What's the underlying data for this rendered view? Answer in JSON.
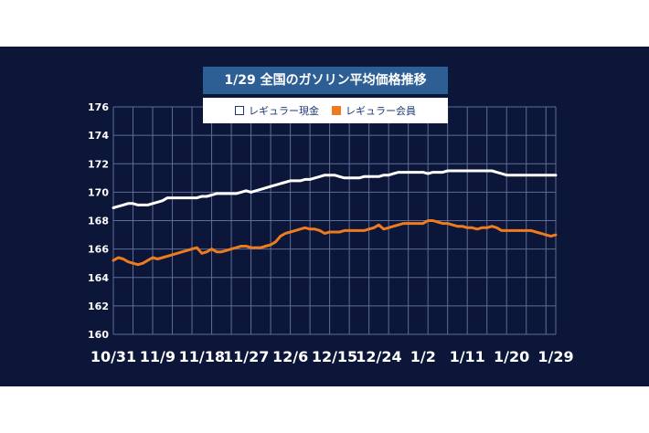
{
  "chart_data": {
    "type": "line",
    "title": "1/29 全国のガソリン平均価格推移",
    "xlabel": "",
    "ylabel": "",
    "ylim": [
      160,
      176
    ],
    "yticks": [
      160,
      162,
      164,
      166,
      168,
      170,
      172,
      174,
      176
    ],
    "grid": true,
    "legend_position": "top-center",
    "tick_labels_x": [
      "10/31",
      "11/9",
      "11/18",
      "11/27",
      "12/6",
      "12/15",
      "12/24",
      "1/2",
      "1/11",
      "1/20",
      "1/29"
    ],
    "x": [
      0,
      1,
      2,
      3,
      4,
      5,
      6,
      7,
      8,
      9,
      10,
      11,
      12,
      13,
      14,
      15,
      16,
      17,
      18,
      19,
      20,
      21,
      22,
      23,
      24,
      25,
      26,
      27,
      28,
      29,
      30,
      31,
      32,
      33,
      34,
      35,
      36,
      37,
      38,
      39,
      40,
      41,
      42,
      43,
      44,
      45,
      46,
      47,
      48,
      49,
      50,
      51,
      52,
      53,
      54,
      55,
      56,
      57,
      58,
      59,
      60,
      61,
      62,
      63,
      64,
      65,
      66,
      67,
      68,
      69,
      70,
      71,
      72,
      73,
      74,
      75,
      76,
      77,
      78,
      79,
      80,
      81,
      82,
      83,
      84,
      85,
      86,
      87,
      88,
      89,
      90
    ],
    "series": [
      {
        "name": "レギュラー現金",
        "color": "#ffffff",
        "values": [
          168.9,
          169.0,
          169.1,
          169.2,
          169.2,
          169.1,
          169.1,
          169.1,
          169.2,
          169.3,
          169.4,
          169.6,
          169.6,
          169.6,
          169.6,
          169.6,
          169.6,
          169.6,
          169.7,
          169.7,
          169.8,
          169.9,
          169.9,
          169.9,
          169.9,
          169.9,
          170.0,
          170.1,
          170.0,
          170.1,
          170.2,
          170.3,
          170.4,
          170.5,
          170.6,
          170.7,
          170.8,
          170.8,
          170.8,
          170.9,
          170.9,
          171.0,
          171.1,
          171.2,
          171.2,
          171.2,
          171.1,
          171.0,
          171.0,
          171.0,
          171.0,
          171.1,
          171.1,
          171.1,
          171.1,
          171.2,
          171.2,
          171.3,
          171.4,
          171.4,
          171.4,
          171.4,
          171.4,
          171.4,
          171.3,
          171.4,
          171.4,
          171.4,
          171.5,
          171.5,
          171.5,
          171.5,
          171.5,
          171.5,
          171.5,
          171.5,
          171.5,
          171.5,
          171.4,
          171.3,
          171.2,
          171.2,
          171.2,
          171.2,
          171.2,
          171.2,
          171.2,
          171.2,
          171.2,
          171.2,
          171.2
        ]
      },
      {
        "name": "レギュラー会員",
        "color": "#ee7b1e",
        "values": [
          165.2,
          165.4,
          165.3,
          165.1,
          165.0,
          164.9,
          165.0,
          165.2,
          165.4,
          165.3,
          165.4,
          165.5,
          165.6,
          165.7,
          165.8,
          165.9,
          166.0,
          166.1,
          165.7,
          165.8,
          166.0,
          165.8,
          165.8,
          165.9,
          166.0,
          166.1,
          166.2,
          166.2,
          166.1,
          166.1,
          166.1,
          166.2,
          166.3,
          166.5,
          166.9,
          167.1,
          167.2,
          167.3,
          167.4,
          167.5,
          167.4,
          167.4,
          167.3,
          167.1,
          167.2,
          167.2,
          167.2,
          167.3,
          167.3,
          167.3,
          167.3,
          167.3,
          167.4,
          167.5,
          167.7,
          167.4,
          167.5,
          167.6,
          167.7,
          167.8,
          167.8,
          167.8,
          167.8,
          167.8,
          168.0,
          168.0,
          167.9,
          167.8,
          167.8,
          167.7,
          167.6,
          167.6,
          167.5,
          167.5,
          167.4,
          167.5,
          167.5,
          167.6,
          167.5,
          167.3,
          167.3,
          167.3,
          167.3,
          167.3,
          167.3,
          167.3,
          167.2,
          167.1,
          167.0,
          166.9,
          167.0
        ]
      }
    ]
  }
}
